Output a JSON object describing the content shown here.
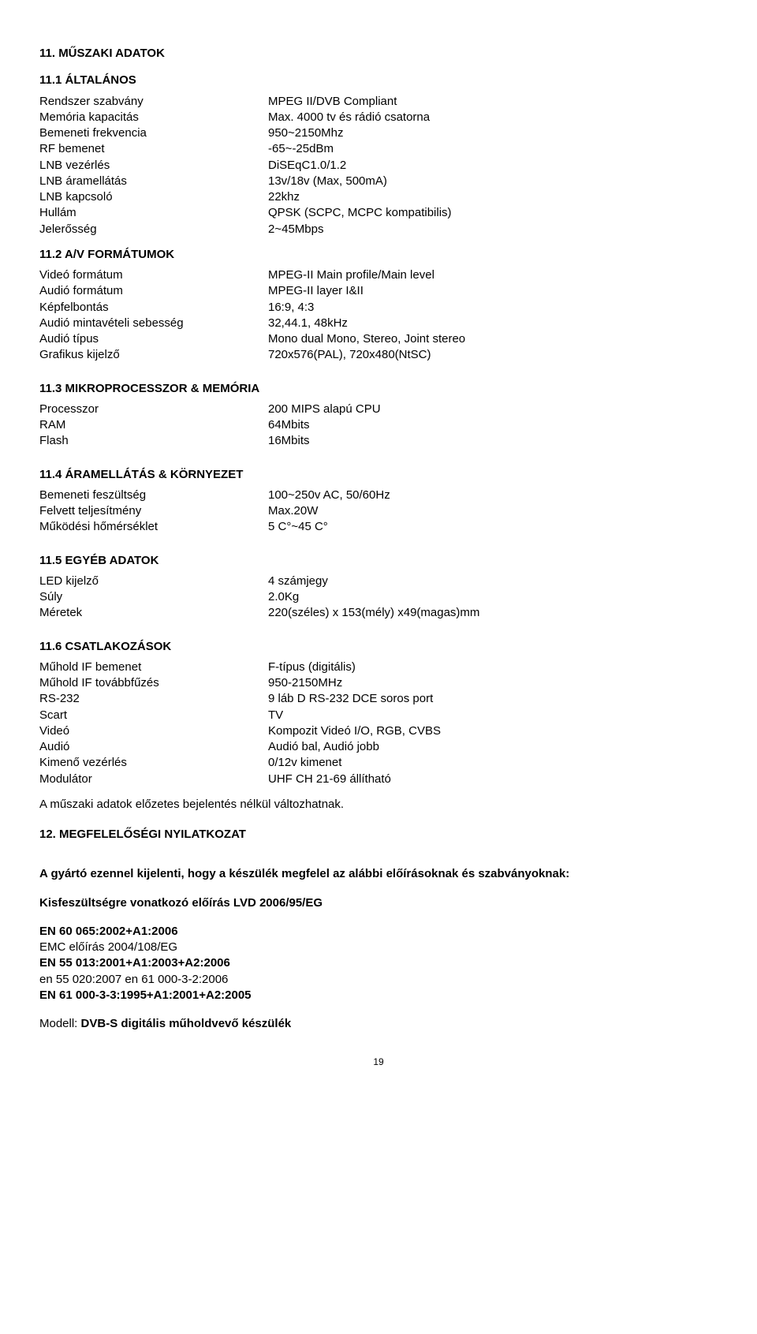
{
  "s11": {
    "title": "11. MŰSZAKI ADATOK",
    "s1": {
      "title": "11.1 ÁLTALÁNOS",
      "rows": [
        {
          "label": "Rendszer szabvány",
          "value": "MPEG II/DVB Compliant"
        },
        {
          "label": "Memória kapacitás",
          "value": "Max. 4000 tv és rádió csatorna"
        },
        {
          "label": "Bemeneti frekvencia",
          "value": "950~2150Mhz"
        },
        {
          "label": "RF bemenet",
          "value": "-65~-25dBm"
        },
        {
          "label": "LNB vezérlés",
          "value": "DiSEqC1.0/1.2"
        },
        {
          "label": "LNB áramellátás",
          "value": "13v/18v (Max, 500mA)"
        },
        {
          "label": "LNB kapcsoló",
          "value": "22khz"
        },
        {
          "label": "Hullám",
          "value": "QPSK (SCPC, MCPC kompatibilis)"
        },
        {
          "label": "Jelerősség",
          "value": "2~45Mbps"
        }
      ]
    },
    "s2": {
      "title": "11.2 A/V FORMÁTUMOK",
      "rows": [
        {
          "label": "Videó formátum",
          "value": "MPEG-II Main profile/Main level"
        },
        {
          "label": "Audió formátum",
          "value": "MPEG-II layer I&II"
        },
        {
          "label": "Képfelbontás",
          "value": "16:9, 4:3"
        },
        {
          "label": "Audió mintavételi sebesség",
          "value": "32,44.1, 48kHz"
        },
        {
          "label": "Audió típus",
          "value": "Mono dual Mono, Stereo, Joint stereo"
        },
        {
          "label": "Grafikus kijelző",
          "value": "720x576(PAL), 720x480(NtSC)"
        }
      ]
    },
    "s3": {
      "title": "11.3 MIKROPROCESSZOR & MEMÓRIA",
      "rows": [
        {
          "label": "Processzor",
          "value": "200 MIPS alapú CPU"
        },
        {
          "label": "RAM",
          "value": "64Mbits"
        },
        {
          "label": "Flash",
          "value": "16Mbits"
        }
      ]
    },
    "s4": {
      "title": "11.4 ÁRAMELLÁTÁS & KÖRNYEZET",
      "rows": [
        {
          "label": "Bemeneti feszültség",
          "value": "100~250v AC, 50/60Hz"
        },
        {
          "label": "Felvett teljesítmény",
          "value": "Max.20W"
        },
        {
          "label": "Működési hőmérséklet",
          "value": "5 C°~45 C°"
        }
      ]
    },
    "s5": {
      "title": "11.5 EGYÉB ADATOK",
      "rows": [
        {
          "label": "LED kijelző",
          "value": "4 számjegy"
        },
        {
          "label": "Súly",
          "value": "2.0Kg"
        },
        {
          "label": "Méretek",
          "value": "220(széles) x 153(mély) x49(magas)mm"
        }
      ]
    },
    "s6": {
      "title": "11.6 CSATLAKOZÁSOK",
      "rows": [
        {
          "label": "Műhold IF bemenet",
          "value": "F-típus (digitális)"
        },
        {
          "label": "Műhold IF továbbfűzés",
          "value": "950-2150MHz"
        },
        {
          "label": "RS-232",
          "value": "9 láb D RS-232 DCE soros port"
        },
        {
          "label": "Scart",
          "value": "TV"
        },
        {
          "label": "Videó",
          "value": "Kompozit Videó I/O, RGB, CVBS"
        },
        {
          "label": "Audió",
          "value": "Audió bal, Audió jobb"
        },
        {
          "label": "Kimenő vezérlés",
          "value": "0/12v kimenet"
        },
        {
          "label": "Modulátor",
          "value": "UHF CH 21-69 állítható"
        }
      ],
      "note": "A műszaki adatok előzetes bejelentés nélkül változhatnak."
    }
  },
  "s12": {
    "title": "12. MEGFELELŐSÉGI NYILATKOZAT",
    "declaration": "A gyártó ezennel kijelenti, hogy a készülék megfelel az alábbi előírásoknak és szabványoknak:",
    "lvd_title": "Kisfeszültségre vonatkozó előírás LVD 2006/95/EG",
    "lines": [
      {
        "text": "EN 60 065:2002+A1:2006",
        "bold": true
      },
      {
        "text": "EMC előírás 2004/108/EG",
        "bold": false
      },
      {
        "text": "EN 55 013:2001+A1:2003+A2:2006",
        "bold": true
      },
      {
        "text": "en 55 020:2007 en 61 000-3-2:2006",
        "bold": false
      },
      {
        "text": "EN 61 000-3-3:1995+A1:2001+A2:2005",
        "bold": true
      }
    ],
    "model_prefix": "Modell: ",
    "model_value": "DVB-S digitális műholdvevő készülék"
  },
  "page_number": "19"
}
